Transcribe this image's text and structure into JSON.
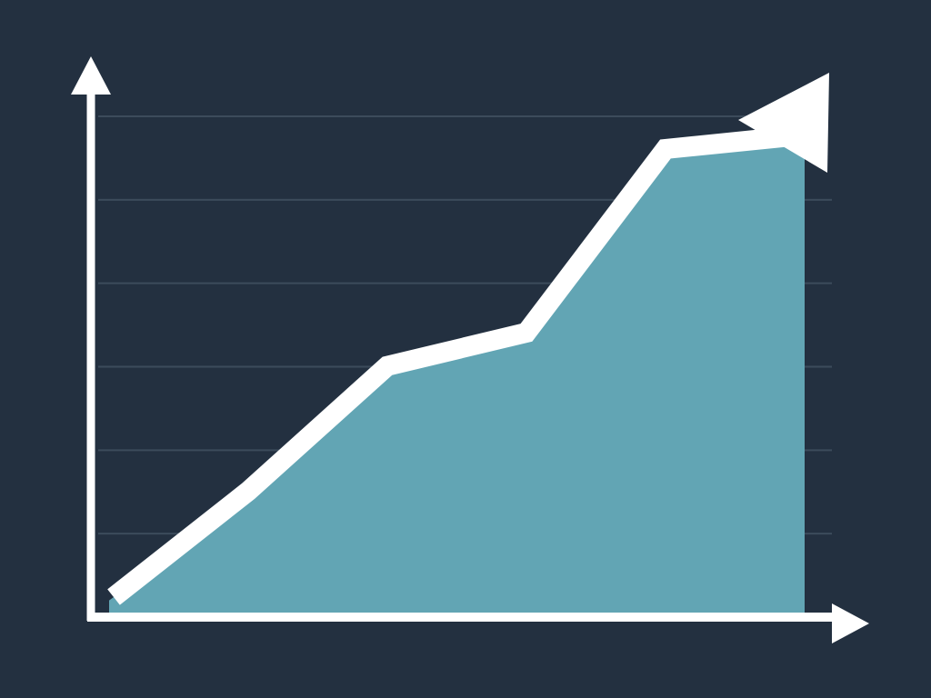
{
  "chart_data": {
    "type": "area",
    "title": "",
    "xlabel": "",
    "ylabel": "",
    "grid": true,
    "legend": "none",
    "x": [
      0,
      1,
      2,
      3,
      4,
      5
    ],
    "ylim": [
      0,
      6
    ],
    "series": [
      {
        "values": [
          0.2,
          1.4,
          2.9,
          3.3,
          5.5,
          5.7
        ]
      }
    ],
    "colors": {
      "background": "#233040",
      "area": "#62a5b4",
      "line": "#ffffff",
      "axis": "#ffffff",
      "grid": "#3c4b5b"
    },
    "trend_arrow": true
  }
}
